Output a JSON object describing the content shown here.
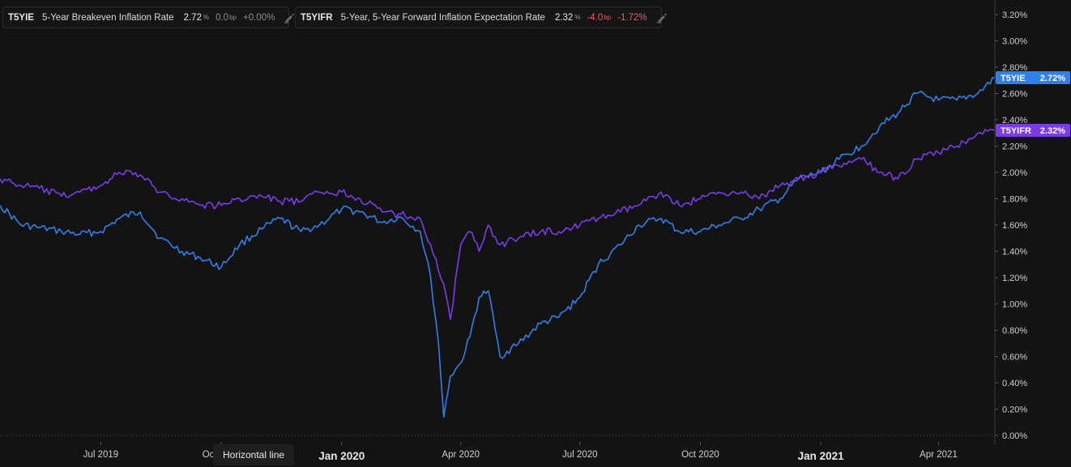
{
  "chart_data": {
    "type": "line",
    "y_axis": {
      "position": "right",
      "min": 0.0,
      "max": 3.2,
      "ticks": [
        "0.00%",
        "0.20%",
        "0.40%",
        "0.60%",
        "0.80%",
        "1.00%",
        "1.20%",
        "1.40%",
        "1.60%",
        "1.80%",
        "2.00%",
        "2.20%",
        "2.40%",
        "2.60%",
        "2.80%",
        "3.00%",
        "3.20%"
      ]
    },
    "x_axis": {
      "start": "2019-04-15",
      "end": "2021-05-14",
      "ticks": [
        {
          "date": "2019-07-01",
          "label": "Jul 2019",
          "major": false
        },
        {
          "date": "2019-10-01",
          "label": "Oct 2019",
          "major": false
        },
        {
          "date": "2020-01-01",
          "label": "Jan 2020",
          "major": true
        },
        {
          "date": "2020-04-01",
          "label": "Apr 2020",
          "major": false
        },
        {
          "date": "2020-07-01",
          "label": "Jul 2020",
          "major": false
        },
        {
          "date": "2020-10-01",
          "label": "Oct 2020",
          "major": false
        },
        {
          "date": "2021-01-01",
          "label": "Jan 2021",
          "major": true
        },
        {
          "date": "2021-04-01",
          "label": "Apr 2021",
          "major": false
        }
      ]
    },
    "grid": false,
    "series": [
      {
        "symbol": "T5YIE",
        "name": "5-Year Breakeven Inflation Rate",
        "color": "#2f80ed",
        "last_value": "2.72",
        "last_value_label": "2.72%",
        "change": "0.0",
        "change_unit": "bp",
        "change_pct": "+0.00%",
        "change_tone": "neutral",
        "points": [
          [
            "2019-04-15",
            1.75
          ],
          [
            "2019-05-01",
            1.6
          ],
          [
            "2019-05-15",
            1.58
          ],
          [
            "2019-06-01",
            1.55
          ],
          [
            "2019-06-15",
            1.53
          ],
          [
            "2019-07-01",
            1.55
          ],
          [
            "2019-07-15",
            1.65
          ],
          [
            "2019-07-31",
            1.7
          ],
          [
            "2019-08-15",
            1.5
          ],
          [
            "2019-09-01",
            1.4
          ],
          [
            "2019-09-15",
            1.35
          ],
          [
            "2019-10-01",
            1.28
          ],
          [
            "2019-10-15",
            1.45
          ],
          [
            "2019-11-01",
            1.57
          ],
          [
            "2019-11-15",
            1.65
          ],
          [
            "2019-12-01",
            1.55
          ],
          [
            "2019-12-15",
            1.6
          ],
          [
            "2020-01-01",
            1.72
          ],
          [
            "2020-01-15",
            1.7
          ],
          [
            "2020-02-01",
            1.62
          ],
          [
            "2020-02-15",
            1.66
          ],
          [
            "2020-03-01",
            1.55
          ],
          [
            "2020-03-09",
            1.2
          ],
          [
            "2020-03-15",
            0.7
          ],
          [
            "2020-03-19",
            0.14
          ],
          [
            "2020-03-24",
            0.45
          ],
          [
            "2020-04-01",
            0.55
          ],
          [
            "2020-04-08",
            0.75
          ],
          [
            "2020-04-15",
            1.05
          ],
          [
            "2020-04-22",
            1.1
          ],
          [
            "2020-05-01",
            0.6
          ],
          [
            "2020-05-15",
            0.7
          ],
          [
            "2020-06-01",
            0.85
          ],
          [
            "2020-06-15",
            0.9
          ],
          [
            "2020-07-01",
            1.05
          ],
          [
            "2020-07-15",
            1.3
          ],
          [
            "2020-08-01",
            1.45
          ],
          [
            "2020-08-15",
            1.6
          ],
          [
            "2020-09-01",
            1.65
          ],
          [
            "2020-09-15",
            1.55
          ],
          [
            "2020-10-01",
            1.55
          ],
          [
            "2020-10-15",
            1.6
          ],
          [
            "2020-11-01",
            1.65
          ],
          [
            "2020-11-15",
            1.72
          ],
          [
            "2020-12-01",
            1.8
          ],
          [
            "2020-12-15",
            1.95
          ],
          [
            "2021-01-01",
            2.0
          ],
          [
            "2021-01-15",
            2.1
          ],
          [
            "2021-02-01",
            2.2
          ],
          [
            "2021-02-15",
            2.35
          ],
          [
            "2021-03-01",
            2.45
          ],
          [
            "2021-03-15",
            2.6
          ],
          [
            "2021-04-01",
            2.55
          ],
          [
            "2021-04-15",
            2.55
          ],
          [
            "2021-05-01",
            2.6
          ],
          [
            "2021-05-14",
            2.72
          ]
        ]
      },
      {
        "symbol": "T5YIFR",
        "name": "5-Year, 5-Year Forward Inflation Expectation Rate",
        "color": "#7c3aed",
        "last_value": "2.32",
        "last_value_label": "2.32%",
        "change": "-4.0",
        "change_unit": "bp",
        "change_pct": "-1.72%",
        "change_tone": "negative",
        "points": [
          [
            "2019-04-15",
            1.95
          ],
          [
            "2019-05-01",
            1.9
          ],
          [
            "2019-05-15",
            1.88
          ],
          [
            "2019-06-01",
            1.82
          ],
          [
            "2019-06-15",
            1.85
          ],
          [
            "2019-07-01",
            1.9
          ],
          [
            "2019-07-15",
            2.0
          ],
          [
            "2019-07-31",
            1.98
          ],
          [
            "2019-08-15",
            1.85
          ],
          [
            "2019-09-01",
            1.8
          ],
          [
            "2019-09-15",
            1.75
          ],
          [
            "2019-10-01",
            1.75
          ],
          [
            "2019-10-15",
            1.8
          ],
          [
            "2019-11-01",
            1.82
          ],
          [
            "2019-11-15",
            1.78
          ],
          [
            "2019-12-01",
            1.78
          ],
          [
            "2019-12-15",
            1.85
          ],
          [
            "2020-01-01",
            1.85
          ],
          [
            "2020-01-15",
            1.8
          ],
          [
            "2020-02-01",
            1.7
          ],
          [
            "2020-02-15",
            1.68
          ],
          [
            "2020-03-01",
            1.65
          ],
          [
            "2020-03-09",
            1.45
          ],
          [
            "2020-03-15",
            1.25
          ],
          [
            "2020-03-19",
            1.15
          ],
          [
            "2020-03-24",
            0.88
          ],
          [
            "2020-04-01",
            1.45
          ],
          [
            "2020-04-08",
            1.55
          ],
          [
            "2020-04-15",
            1.4
          ],
          [
            "2020-04-22",
            1.6
          ],
          [
            "2020-05-01",
            1.45
          ],
          [
            "2020-05-15",
            1.5
          ],
          [
            "2020-06-01",
            1.55
          ],
          [
            "2020-06-15",
            1.55
          ],
          [
            "2020-07-01",
            1.6
          ],
          [
            "2020-07-15",
            1.65
          ],
          [
            "2020-08-01",
            1.7
          ],
          [
            "2020-08-15",
            1.75
          ],
          [
            "2020-09-01",
            1.85
          ],
          [
            "2020-09-15",
            1.75
          ],
          [
            "2020-10-01",
            1.8
          ],
          [
            "2020-10-15",
            1.85
          ],
          [
            "2020-11-01",
            1.85
          ],
          [
            "2020-11-15",
            1.8
          ],
          [
            "2020-12-01",
            1.9
          ],
          [
            "2020-12-15",
            1.95
          ],
          [
            "2021-01-01",
            2.0
          ],
          [
            "2021-01-15",
            2.05
          ],
          [
            "2021-02-01",
            2.1
          ],
          [
            "2021-02-15",
            2.0
          ],
          [
            "2021-03-01",
            1.95
          ],
          [
            "2021-03-15",
            2.1
          ],
          [
            "2021-04-01",
            2.15
          ],
          [
            "2021-04-15",
            2.2
          ],
          [
            "2021-05-01",
            2.3
          ],
          [
            "2021-05-14",
            2.32
          ]
        ]
      }
    ]
  },
  "tooltip": {
    "label": "Horizontal line"
  }
}
